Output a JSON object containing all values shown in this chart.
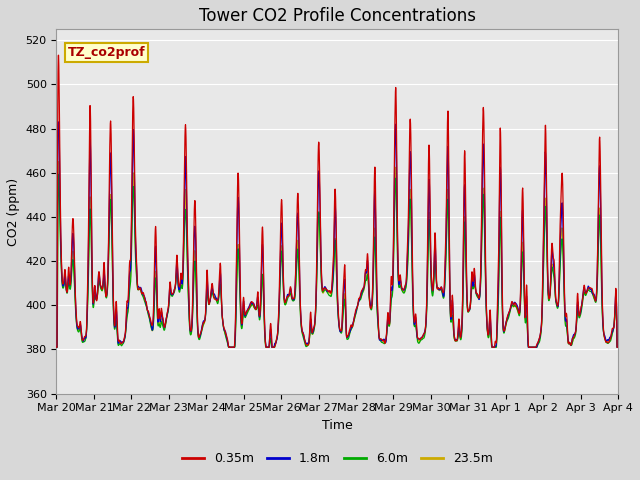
{
  "title": "Tower CO2 Profile Concentrations",
  "xlabel": "Time",
  "ylabel": "CO2 (ppm)",
  "ylim": [
    360,
    525
  ],
  "yticks": [
    360,
    380,
    400,
    420,
    440,
    460,
    480,
    500,
    520
  ],
  "legend_labels": [
    "0.35m",
    "1.8m",
    "6.0m",
    "23.5m"
  ],
  "legend_colors": [
    "#cc0000",
    "#0000cc",
    "#00aa00",
    "#ccaa00"
  ],
  "annotation_text": "TZ_co2prof",
  "annotation_facecolor": "#ffffcc",
  "annotation_edgecolor": "#ccaa00",
  "plot_bg_color": "#e8e8e8",
  "fig_bg_color": "#d8d8d8",
  "grid_color": "#ffffff",
  "n_days": 15,
  "seed": 12345,
  "title_fontsize": 12,
  "axis_fontsize": 9,
  "tick_fontsize": 8,
  "legend_fontsize": 9,
  "line_width": 0.9,
  "xtick_labels": [
    "Mar 20",
    "Mar 21",
    "Mar 22",
    "Mar 23",
    "Mar 24",
    "Mar 25",
    "Mar 26",
    "Mar 27",
    "Mar 28",
    "Mar 29",
    "Mar 30",
    "Mar 31",
    "Apr 1",
    "Apr 2",
    "Apr 3",
    "Apr 4"
  ]
}
